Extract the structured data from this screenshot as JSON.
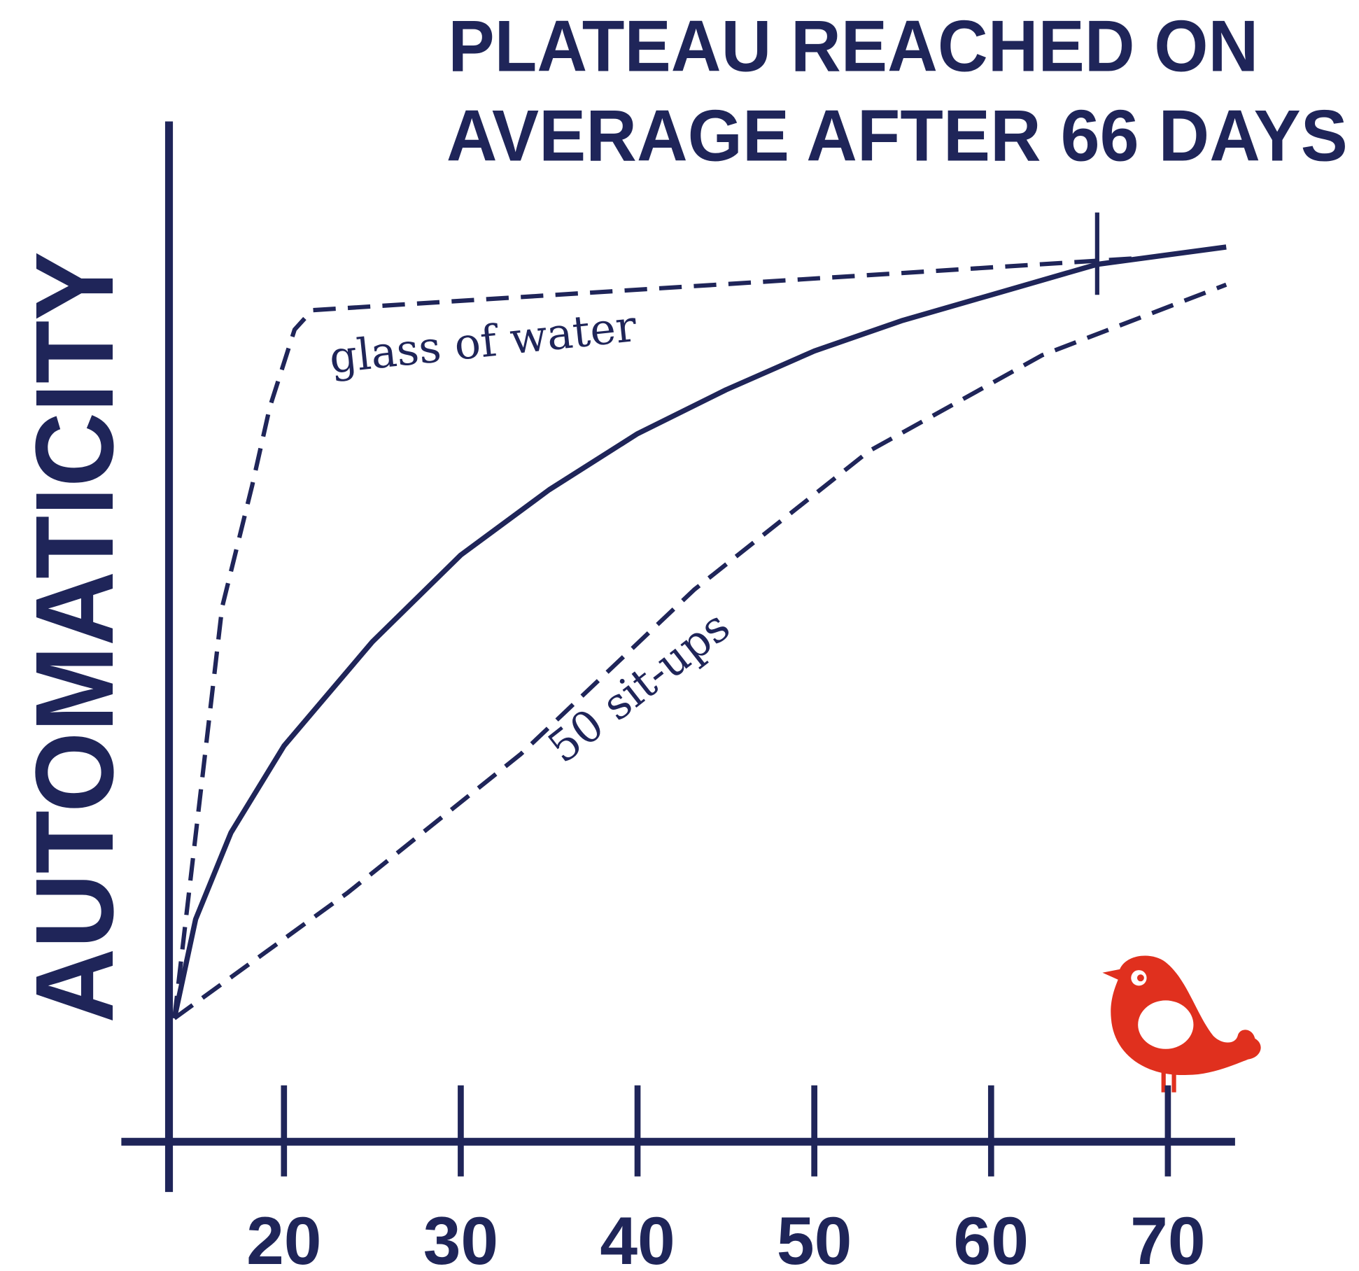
{
  "chart_data": {
    "type": "line",
    "title": [
      "PLATEAU REACHED ON",
      "AVERAGE AFTER 66 DAYS"
    ],
    "y_label": "AUTOMATICITY",
    "annotations": [
      "glass of water",
      "50 sit-ups"
    ],
    "color": "#1f2559",
    "xlim": [
      10.8,
      73.8
    ],
    "xticks": [
      20,
      30,
      40,
      50,
      60,
      70
    ],
    "ylim": [
      0,
      100
    ],
    "plateau_x": 66,
    "series": [
      {
        "x": [
          13.8,
          15,
          17,
          20,
          25,
          30,
          35,
          40,
          45,
          50,
          55,
          60,
          66,
          73.3
        ],
        "values": [
          12.1,
          21.8,
          30.3,
          38.8,
          49.0,
          57.5,
          63.9,
          69.4,
          73.7,
          77.5,
          80.5,
          83.0,
          86.0,
          87.7
        ],
        "dashed": false
      },
      {
        "x": [
          13.8,
          16.5,
          18.2,
          19.2,
          20.6,
          21.6,
          68.3
        ],
        "values": [
          12.1,
          52.4,
          64.3,
          72.0,
          79.6,
          81.5,
          86.6
        ],
        "dashed": true
      },
      {
        "x": [
          13.8,
          23.6,
          33.4,
          43.2,
          53.1,
          62.9,
          73.3
        ],
        "values": [
          12.1,
          24.4,
          38.0,
          54.1,
          67.7,
          77.1,
          84.0
        ],
        "dashed": true
      }
    ]
  }
}
